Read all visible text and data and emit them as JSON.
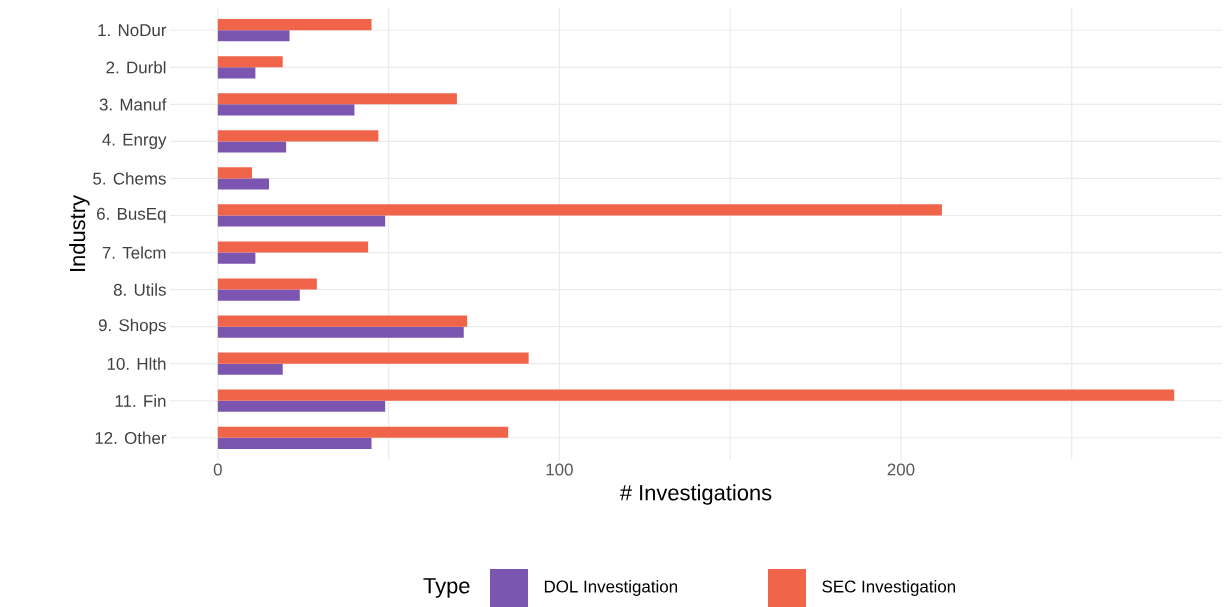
{
  "chart_data": {
    "type": "bar",
    "orientation": "horizontal",
    "xlabel": "# Investigations",
    "ylabel": "Industry",
    "legend_title": "Type",
    "legend": "bottom",
    "grid": true,
    "categories": [
      "1. NoDur",
      "2. Durbl",
      "3. Manuf",
      "4. Enrgy",
      "5. Chems",
      "6. BusEq",
      "7. Telcm",
      "8. Utils",
      "9. Shops",
      "10. Hlth",
      "11. Fin",
      "12. Other"
    ],
    "series": [
      {
        "name": "DOL Investigation",
        "color": "#7b55b0",
        "values": [
          21,
          11,
          40,
          20,
          15,
          49,
          11,
          24,
          72,
          19,
          49,
          45
        ]
      },
      {
        "name": "SEC Investigation",
        "color": "#f0654a",
        "values": [
          45,
          19,
          70,
          47,
          10,
          212,
          44,
          29,
          73,
          91,
          280,
          85
        ]
      }
    ],
    "xlim": [
      -14,
      294
    ],
    "xticks": [
      0,
      {
        "value": 50,
        "label": null
      },
      100,
      {
        "value": 150,
        "label": null
      },
      200,
      {
        "value": 250,
        "label": null
      }
    ]
  }
}
